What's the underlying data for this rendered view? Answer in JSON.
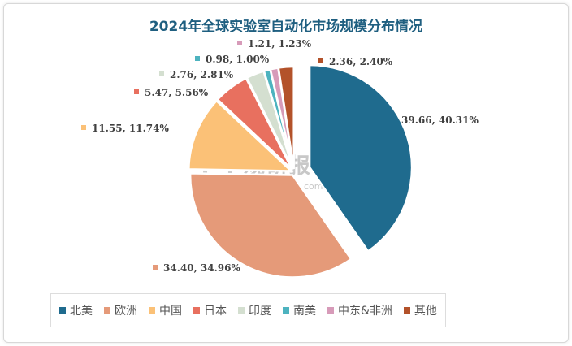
{
  "chart_data": {
    "type": "pie",
    "title": "2024年全球实验室自动化市场规模分布情况",
    "categories": [
      "北美",
      "欧洲",
      "中国",
      "日本",
      "印度",
      "南美",
      "中东&非洲",
      "其他"
    ],
    "values": [
      39.66,
      34.4,
      11.55,
      5.47,
      2.76,
      0.98,
      1.21,
      2.36
    ],
    "percents": [
      "40.31%",
      "34.96%",
      "11.74%",
      "5.56%",
      "2.81%",
      "1.00%",
      "1.23%",
      "2.40%"
    ],
    "data_labels": [
      "39.66, 40.31%",
      "34.40, 34.96%",
      "11.55, 11.74%",
      "5.47, 5.56%",
      "2.76, 2.81%",
      "0.98, 1.00%",
      "1.21, 1.23%",
      "2.36, 2.40%"
    ],
    "colors": [
      "#1f6b8e",
      "#e59a79",
      "#fbc177",
      "#e8705f",
      "#d4dfd0",
      "#4db3bf",
      "#d79bb9",
      "#b3522a"
    ],
    "legend_position": "bottom",
    "exploded": "北美"
  },
  "watermark": {
    "text": "观研报告网",
    "sub": "chinabaogao.com"
  }
}
